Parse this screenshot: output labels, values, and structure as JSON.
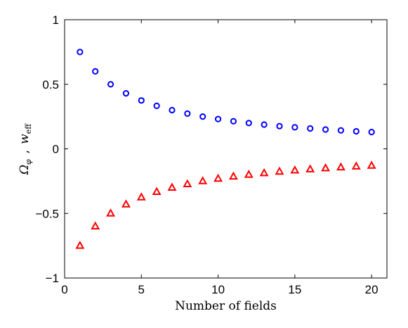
{
  "chart_data": {
    "type": "scatter",
    "title": "",
    "xlabel": "Number of fields",
    "ylabel": "Ω_φ ,  w_eff",
    "ylabel_parts": {
      "omega": "Ω",
      "omega_sub": "φ",
      "separator": ",",
      "w": "w",
      "w_sub": "eff"
    },
    "xlim": [
      0,
      21
    ],
    "ylim": [
      -1,
      1
    ],
    "xticks": [
      0,
      5,
      10,
      15,
      20
    ],
    "yticks": [
      -1,
      -0.5,
      0,
      0.5,
      1
    ],
    "ytick_labels": [
      "−1",
      "−0.5",
      "0",
      "0.5",
      "1"
    ],
    "grid": false,
    "series": [
      {
        "marker": "circle",
        "color": "#0000ff",
        "x": [
          1,
          2,
          3,
          4,
          5,
          6,
          7,
          8,
          9,
          10,
          11,
          12,
          13,
          14,
          15,
          16,
          17,
          18,
          19,
          20
        ],
        "values": [
          0.75,
          0.6,
          0.5,
          0.43,
          0.375,
          0.333,
          0.3,
          0.273,
          0.25,
          0.231,
          0.214,
          0.2,
          0.188,
          0.176,
          0.167,
          0.158,
          0.15,
          0.143,
          0.136,
          0.13
        ]
      },
      {
        "marker": "triangle",
        "color": "#ff0000",
        "x": [
          1,
          2,
          3,
          4,
          5,
          6,
          7,
          8,
          9,
          10,
          11,
          12,
          13,
          14,
          15,
          16,
          17,
          18,
          19,
          20
        ],
        "values": [
          -0.75,
          -0.6,
          -0.5,
          -0.43,
          -0.375,
          -0.333,
          -0.3,
          -0.273,
          -0.25,
          -0.231,
          -0.214,
          -0.2,
          -0.188,
          -0.176,
          -0.167,
          -0.158,
          -0.15,
          -0.143,
          -0.136,
          -0.13
        ]
      }
    ]
  }
}
